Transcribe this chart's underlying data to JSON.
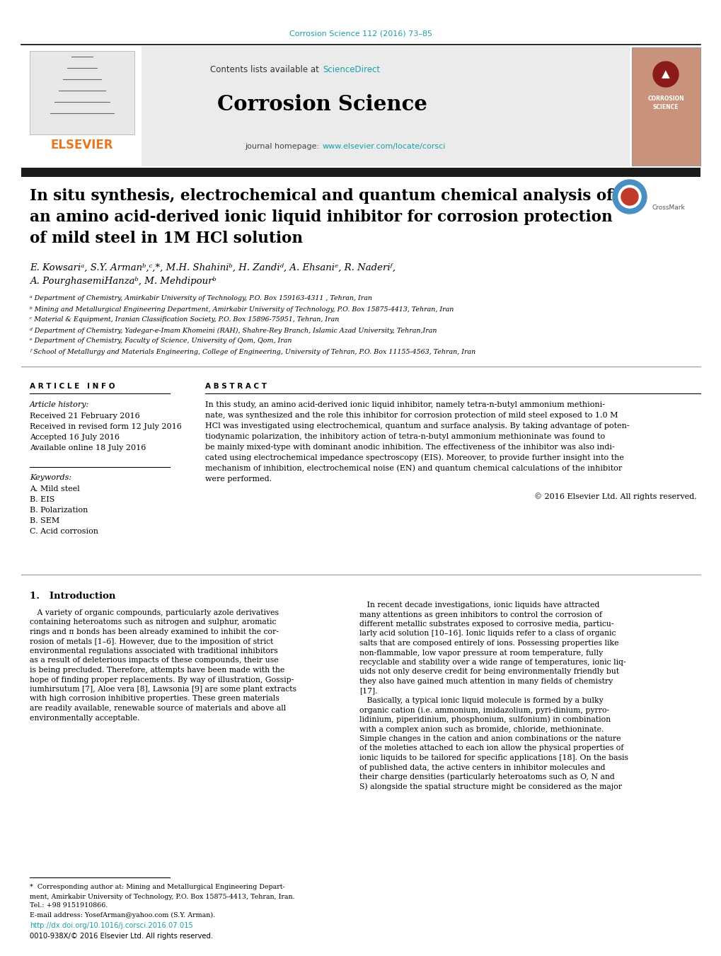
{
  "journal_citation": "Corrosion Science 112 (2016) 73–85",
  "contents_text": "Contents lists available at ",
  "science_direct": "ScienceDirect",
  "journal_name": "Corrosion Science",
  "journal_homepage_prefix": "journal homepage: ",
  "journal_homepage_url": "www.elsevier.com/locate/corsci",
  "article_title_line1": "In situ synthesis, electrochemical and quantum chemical analysis of",
  "article_title_line2": "an amino acid-derived ionic liquid inhibitor for corrosion protection",
  "article_title_line3": "of mild steel in 1M HCl solution",
  "authors": "E. Kowsariᵃ, S.Y. Armanᵇ,ᶜ,*, M.H. Shahiniᵇ, H. Zandiᵈ, A. Ehsaniᵉ, R. Naderiᶠ,",
  "authors2": "A. PourghasemiHanzaᵇ, M. Mehdipourᵇ",
  "affil_a": "ᵃ Department of Chemistry, Amirkabir University of Technology, P.O. Box 159163-4311 , Tehran, Iran",
  "affil_b": "ᵇ Mining and Metallurgical Engineering Department, Amirkabir University of Technology, P.O. Box 15875-4413, Tehran, Iran",
  "affil_c": "ᶜ Material & Equipment, Iranian Classification Society, P.O. Box 15896-75951, Tehran, Iran",
  "affil_d": "ᵈ Department of Chemistry, Yadegar-e-Imam Khomeini (RAH), Shahre-Rey Branch, Islamic Azad University, Tehran,Iran",
  "affil_e": "ᵉ Department of Chemistry, Faculty of Science, University of Qom, Qom, Iran",
  "affil_f": "ᶠ School of Metallurgy and Materials Engineering, College of Engineering, University of Tehran, P.O. Box 11155-4563, Tehran, Iran",
  "article_info_title": "A R T I C L E   I N F O",
  "article_history_label": "Article history:",
  "received": "Received 21 February 2016",
  "received_revised": "Received in revised form 12 July 2016",
  "accepted": "Accepted 16 July 2016",
  "available_online": "Available online 18 July 2016",
  "keywords_label": "Keywords:",
  "keyword1": "A. Mild steel",
  "keyword2": "B. EIS",
  "keyword3": "B. Polarization",
  "keyword4": "B. SEM",
  "keyword5": "C. Acid corrosion",
  "abstract_title": "A B S T R A C T",
  "abstract_text": "In this study, an amino acid-derived ionic liquid inhibitor, namely tetra-n-butyl ammonium methioni-\nnate, was synthesized and the role this inhibitor for corrosion protection of mild steel exposed to 1.0 M\nHCl was investigated using electrochemical, quantum and surface analysis. By taking advantage of poten-\ntiodynamic polarization, the inhibitory action of tetra-n-butyl ammonium methioninate was found to\nbe mainly mixed-type with dominant anodic inhibition. The effectiveness of the inhibitor was also indi-\ncated using electrochemical impedance spectroscopy (EIS). Moreover, to provide further insight into the\nmechanism of inhibition, electrochemical noise (EN) and quantum chemical calculations of the inhibitor\nwere performed.",
  "copyright": "© 2016 Elsevier Ltd. All rights reserved.",
  "intro_title": "1.   Introduction",
  "intro_col1_lines": [
    "   A variety of organic compounds, particularly azole derivatives",
    "containing heteroatoms such as nitrogen and sulphur, aromatic",
    "rings and π bonds has been already examined to inhibit the cor-",
    "rosion of metals [1–6]. However, due to the imposition of strict",
    "environmental regulations associated with traditional inhibitors",
    "as a result of deleterious impacts of these compounds, their use",
    "is being precluded. Therefore, attempts have been made with the",
    "hope of finding proper replacements. By way of illustration, Gossip-",
    "iumhirsutum [7], Aloe vera [8], Lawsonia [9] are some plant extracts",
    "with high corrosion inhibitive properties. These green materials",
    "are readily available, renewable source of materials and above all",
    "environmentally acceptable."
  ],
  "intro_col2_lines": [
    "   In recent decade investigations, ionic liquids have attracted",
    "many attentions as green inhibitors to control the corrosion of",
    "different metallic substrates exposed to corrosive media, particu-",
    "larly acid solution [10–16]. Ionic liquids refer to a class of organic",
    "salts that are composed entirely of ions. Possessing properties like",
    "non-flammable, low vapor pressure at room temperature, fully",
    "recyclable and stability over a wide range of temperatures, ionic liq-",
    "uids not only deserve credit for being environmentally friendly but",
    "they also have gained much attention in many fields of chemistry",
    "[17].",
    "   Basically, a typical ionic liquid molecule is formed by a bulky",
    "organic cation (i.e. ammonium, imidazolium, pyri-dinium, pyrro-",
    "lidinium, piperidinium, phosphonium, sulfonium) in combination",
    "with a complex anion such as bromide, chloride, methioninate.",
    "Simple changes in the cation and anion combinations or the nature",
    "of the moleties attached to each ion allow the physical properties of",
    "ionic liquids to be tailored for specific applications [18]. On the basis",
    "of published data, the active centers in inhibitor molecules and",
    "their charge densities (particularly heteroatoms such as O, N and",
    "S) alongside the spatial structure might be considered as the major"
  ],
  "footnote_lines": [
    "*  Corresponding author at: Mining and Metallurgical Engineering Depart-",
    "ment, Amirkabir University of Technology, P.O. Box 15875-4413, Tehran, Iran.",
    "Tel.: +98 9151910866.",
    "E-mail address: YosefArman@yahoo.com (S.Y. Arman)."
  ],
  "doi_text": "http://dx.doi.org/10.1016/j.corsci.2016.07.015",
  "issn_text": "0010-938X/© 2016 Elsevier Ltd. All rights reserved.",
  "teal_color": "#19A0A8",
  "orange_color": "#E87722",
  "link_color": "#19A0A8",
  "bg_header_color": "#EBEBEB",
  "black_bar_color": "#1a1a1a",
  "cover_bg_color": "#C8937A",
  "crossmark_blue": "#4a8ec2",
  "crossmark_red": "#c0392b"
}
